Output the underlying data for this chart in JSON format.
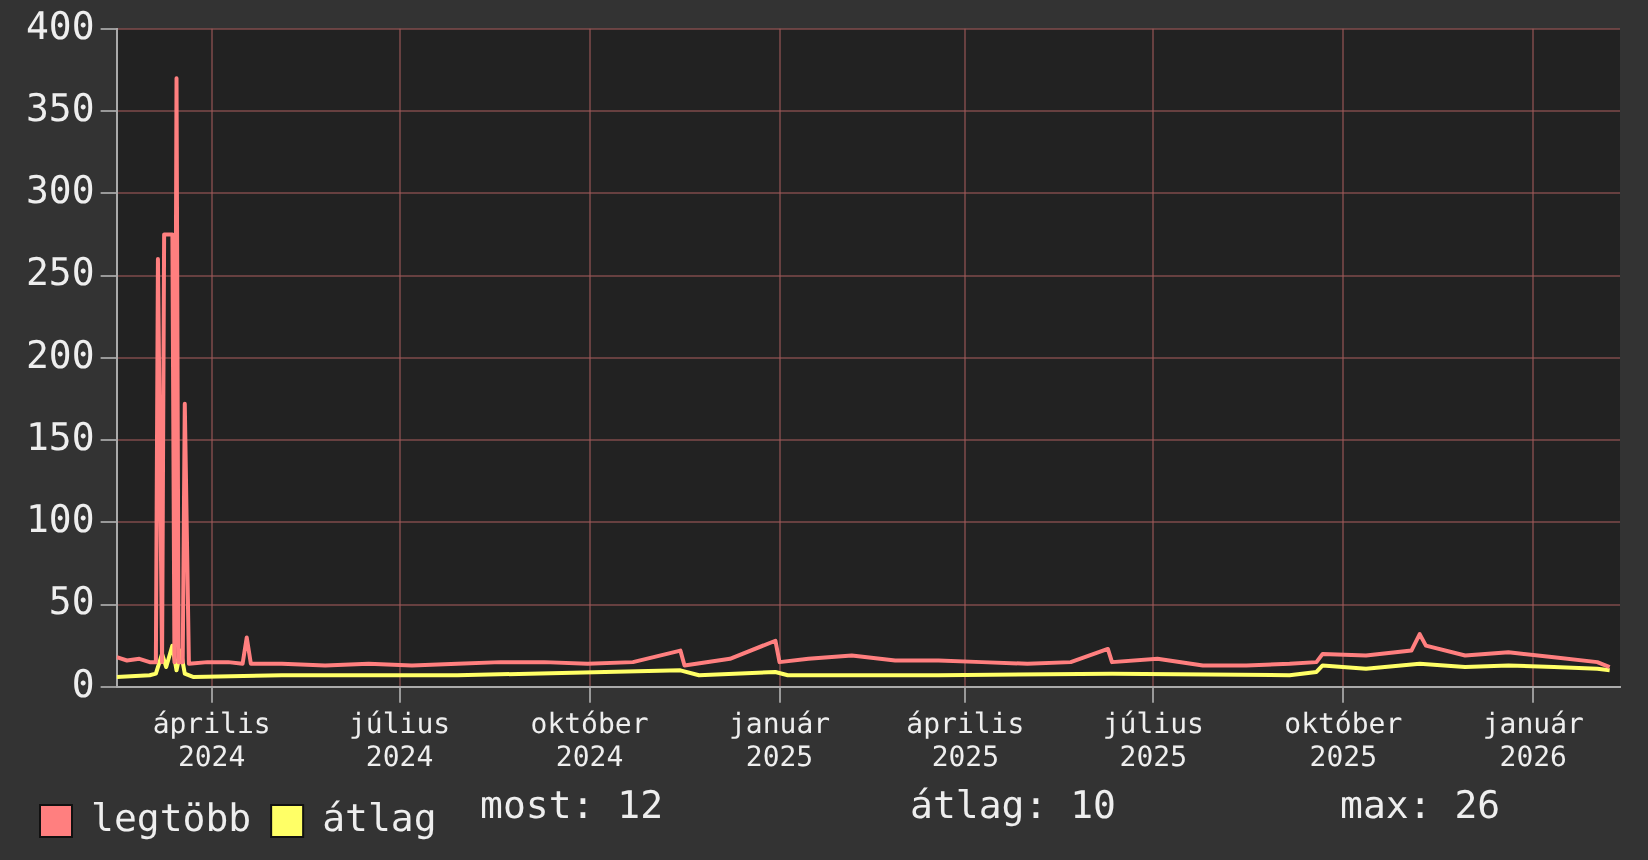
{
  "chart_data": {
    "type": "line",
    "xlim": [
      "2024-02-15",
      "2026-02-12"
    ],
    "ylim": [
      0,
      400
    ],
    "yticks": [
      0,
      50,
      100,
      150,
      200,
      250,
      300,
      350,
      400
    ],
    "xticks": [
      {
        "value": "2024-04-01",
        "label": "április 2024"
      },
      {
        "value": "2024-07-01",
        "label": "július 2024"
      },
      {
        "value": "2024-10-01",
        "label": "október 2024"
      },
      {
        "value": "2025-01-01",
        "label": "január 2025"
      },
      {
        "value": "2025-04-01",
        "label": "április 2025"
      },
      {
        "value": "2025-07-01",
        "label": "július 2025"
      },
      {
        "value": "2025-10-01",
        "label": "október 2025"
      },
      {
        "value": "2026-01-01",
        "label": "január 2026"
      }
    ],
    "grid": true,
    "legend": "bottom",
    "marker": "none",
    "line_style": "solid",
    "annotations": [
      "most: 12",
      "átlag: 10",
      "max: 26"
    ],
    "series": [
      {
        "name": "legtöbb",
        "color": "#ff7f7f",
        "x": [
          "2024-02-15",
          "2024-02-20",
          "2024-02-26",
          "2024-03-02",
          "2024-03-05",
          "2024-03-06",
          "2024-03-08",
          "2024-03-09",
          "2024-03-13",
          "2024-03-14",
          "2024-03-15",
          "2024-03-16",
          "2024-03-18",
          "2024-03-19",
          "2024-03-21",
          "2024-03-30",
          "2024-04-09",
          "2024-04-16",
          "2024-04-18",
          "2024-04-20",
          "2024-05-05",
          "2024-05-26",
          "2024-06-16",
          "2024-07-07",
          "2024-07-29",
          "2024-08-19",
          "2024-09-09",
          "2024-09-30",
          "2024-10-22",
          "2024-11-14",
          "2024-11-16",
          "2024-12-08",
          "2024-12-30",
          "2025-01-01",
          "2025-01-15",
          "2025-02-05",
          "2025-02-26",
          "2025-03-19",
          "2025-04-09",
          "2025-05-01",
          "2025-05-22",
          "2025-06-09",
          "2025-06-11",
          "2025-07-03",
          "2025-07-25",
          "2025-08-15",
          "2025-09-05",
          "2025-09-18",
          "2025-09-21",
          "2025-10-12",
          "2025-11-03",
          "2025-11-07",
          "2025-11-10",
          "2025-11-29",
          "2025-12-20",
          "2026-01-11",
          "2026-02-01",
          "2026-02-07"
        ],
        "values": [
          18,
          16,
          17,
          15,
          15,
          260,
          15,
          275,
          275,
          15,
          370,
          15,
          15,
          172,
          14,
          15,
          15,
          14,
          30,
          14,
          14,
          13,
          14,
          13,
          14,
          15,
          15,
          14,
          15,
          22,
          13,
          17,
          28,
          15,
          17,
          19,
          16,
          16,
          15,
          14,
          15,
          23,
          15,
          17,
          13,
          13,
          14,
          15,
          20,
          19,
          22,
          32,
          25,
          19,
          21,
          18,
          15,
          12
        ]
      },
      {
        "name": "átlag",
        "color": "#ffff66",
        "x": [
          "2024-02-15",
          "2024-03-02",
          "2024-03-05",
          "2024-03-08",
          "2024-03-10",
          "2024-03-13",
          "2024-03-15",
          "2024-03-17",
          "2024-03-19",
          "2024-03-23",
          "2024-05-05",
          "2024-07-29",
          "2024-11-14",
          "2024-11-23",
          "2024-12-30",
          "2025-01-05",
          "2025-03-19",
          "2025-06-11",
          "2025-09-05",
          "2025-09-18",
          "2025-09-21",
          "2025-10-12",
          "2025-11-07",
          "2025-11-29",
          "2025-12-20",
          "2026-01-11",
          "2026-02-01",
          "2026-02-07"
        ],
        "values": [
          6,
          7,
          8,
          20,
          12,
          25,
          10,
          22,
          8,
          6,
          7,
          7,
          10,
          7,
          9,
          7,
          7,
          8,
          7,
          9,
          13,
          11,
          14,
          12,
          13,
          12,
          11,
          10
        ]
      }
    ]
  }
}
